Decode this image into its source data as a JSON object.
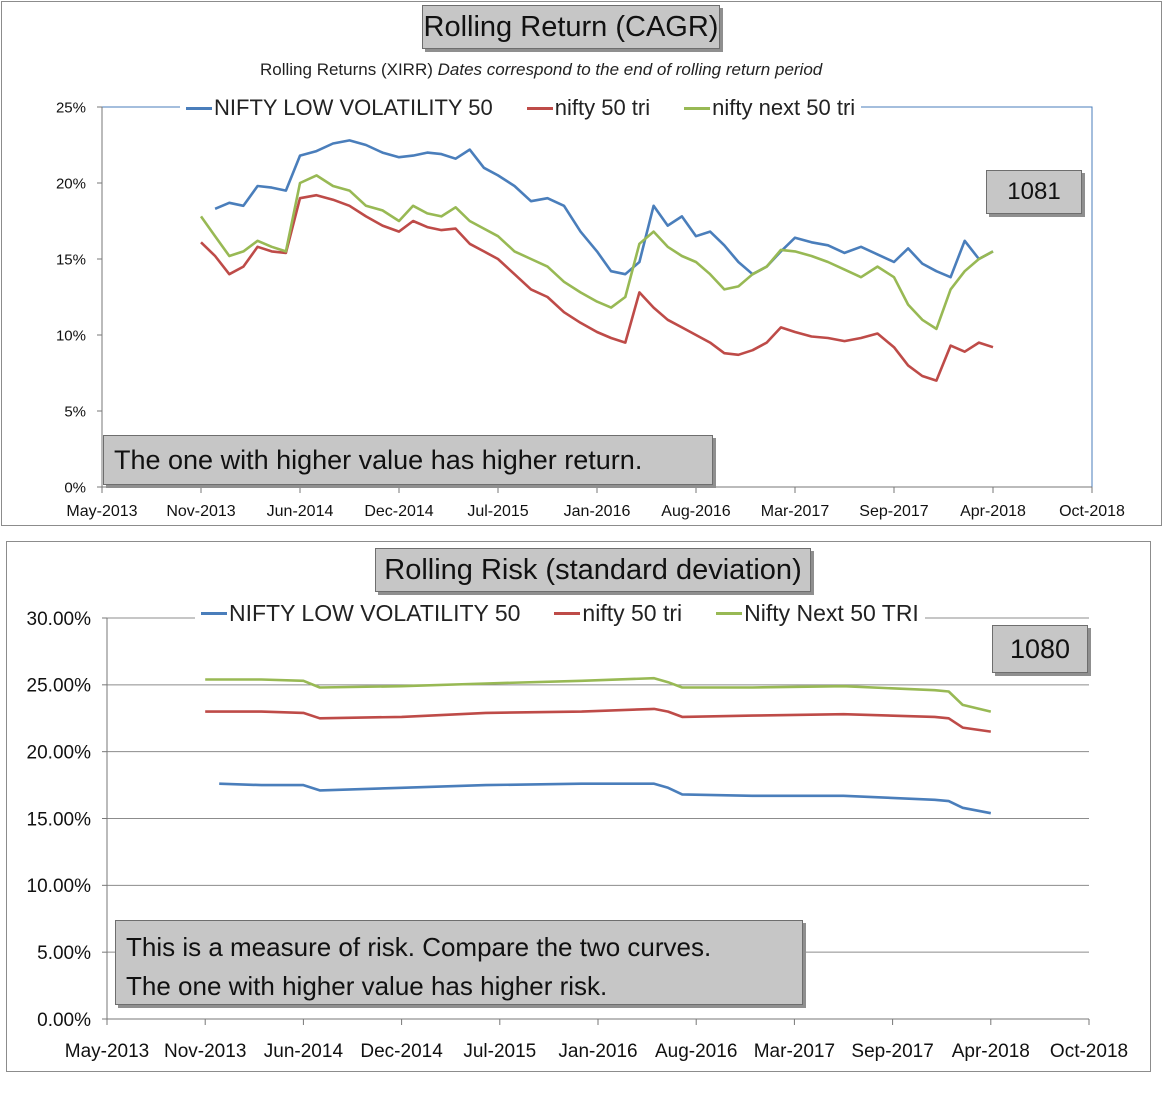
{
  "colors": {
    "low_vol": "#4a7ebb",
    "nifty50": "#be4b48",
    "next50": "#98b954"
  },
  "chart_data": [
    {
      "type": "line",
      "title": "Rolling Return (CAGR)",
      "subtitle_plain": "Rolling Returns (XIRR)",
      "subtitle_italic": "Dates correspond to the end of rolling return period",
      "badge": "1081",
      "annotation": [
        "The one with higher value has higher return."
      ],
      "x_ticks": [
        "May-2013",
        "Nov-2013",
        "Jun-2014",
        "Dec-2014",
        "Jul-2015",
        "Jan-2016",
        "Aug-2016",
        "Mar-2017",
        "Sep-2017",
        "Apr-2018",
        "Oct-2018"
      ],
      "y_ticks": [
        "0%",
        "5%",
        "10%",
        "15%",
        "20%",
        "25%"
      ],
      "ylim": [
        0,
        25
      ],
      "grid": false,
      "legend_position": "top",
      "series": [
        {
          "name": "NIFTY LOW VOLATILITY 50",
          "x": [
            "2013-12",
            "2014-01",
            "2014-02",
            "2014-03",
            "2014-04",
            "2014-05",
            "2014-06",
            "2014-07",
            "2014-08",
            "2014-09",
            "2014-10",
            "2014-11",
            "2014-12",
            "2015-01",
            "2015-02",
            "2015-03",
            "2015-04",
            "2015-05",
            "2015-06",
            "2015-07",
            "2015-08",
            "2015-09",
            "2015-10",
            "2015-11",
            "2015-12",
            "2016-01",
            "2016-02",
            "2016-03",
            "2016-04",
            "2016-05",
            "2016-06",
            "2016-07",
            "2016-08",
            "2016-09",
            "2016-10",
            "2016-11",
            "2016-12",
            "2017-01",
            "2017-02",
            "2017-03",
            "2017-04",
            "2017-05",
            "2017-06",
            "2017-07",
            "2017-08",
            "2017-09",
            "2017-10",
            "2017-11",
            "2017-12",
            "2018-01",
            "2018-02",
            "2018-03",
            "2018-04"
          ],
          "y": [
            18.3,
            18.7,
            18.5,
            19.8,
            19.7,
            19.5,
            21.8,
            22.1,
            22.6,
            22.8,
            22.5,
            22.0,
            21.7,
            21.8,
            22.0,
            21.9,
            21.6,
            22.2,
            21.0,
            20.5,
            19.8,
            18.8,
            19.0,
            18.5,
            16.8,
            15.5,
            14.2,
            14.0,
            14.8,
            18.5,
            17.2,
            17.8,
            16.5,
            16.8,
            15.9,
            14.8,
            14.0,
            14.5,
            15.5,
            16.4,
            16.1,
            15.9,
            15.4,
            15.8,
            15.3,
            14.8,
            15.7,
            14.7,
            14.2,
            13.8,
            16.2,
            15.0,
            15.5
          ]
        },
        {
          "name": "nifty 50 tri",
          "x": [
            "2013-11",
            "2013-12",
            "2014-01",
            "2014-02",
            "2014-03",
            "2014-04",
            "2014-05",
            "2014-06",
            "2014-07",
            "2014-08",
            "2014-09",
            "2014-10",
            "2014-11",
            "2014-12",
            "2015-01",
            "2015-02",
            "2015-03",
            "2015-04",
            "2015-05",
            "2015-06",
            "2015-07",
            "2015-08",
            "2015-09",
            "2015-10",
            "2015-11",
            "2015-12",
            "2016-01",
            "2016-02",
            "2016-03",
            "2016-04",
            "2016-05",
            "2016-06",
            "2016-07",
            "2016-08",
            "2016-09",
            "2016-10",
            "2016-11",
            "2016-12",
            "2017-01",
            "2017-02",
            "2017-03",
            "2017-04",
            "2017-05",
            "2017-06",
            "2017-07",
            "2017-08",
            "2017-09",
            "2017-10",
            "2017-11",
            "2017-12",
            "2018-01",
            "2018-02",
            "2018-03",
            "2018-04"
          ],
          "y": [
            16.1,
            15.2,
            14.0,
            14.5,
            15.8,
            15.5,
            15.4,
            19.0,
            19.2,
            18.9,
            18.5,
            17.8,
            17.2,
            16.8,
            17.5,
            17.1,
            16.9,
            17.0,
            16.0,
            15.5,
            15.0,
            14.0,
            13.0,
            12.5,
            11.5,
            10.8,
            10.2,
            9.8,
            9.5,
            12.8,
            11.8,
            11.0,
            10.5,
            10.0,
            9.5,
            8.8,
            8.7,
            9.0,
            9.5,
            10.5,
            10.2,
            9.9,
            9.8,
            9.6,
            9.8,
            10.1,
            9.2,
            8.0,
            7.3,
            7.0,
            9.3,
            8.9,
            9.5,
            9.2
          ]
        },
        {
          "name": "nifty next 50 tri",
          "x": [
            "2013-11",
            "2013-12",
            "2014-01",
            "2014-02",
            "2014-03",
            "2014-04",
            "2014-05",
            "2014-06",
            "2014-07",
            "2014-08",
            "2014-09",
            "2014-10",
            "2014-11",
            "2014-12",
            "2015-01",
            "2015-02",
            "2015-03",
            "2015-04",
            "2015-05",
            "2015-06",
            "2015-07",
            "2015-08",
            "2015-09",
            "2015-10",
            "2015-11",
            "2015-12",
            "2016-01",
            "2016-02",
            "2016-03",
            "2016-04",
            "2016-05",
            "2016-06",
            "2016-07",
            "2016-08",
            "2016-09",
            "2016-10",
            "2016-11",
            "2016-12",
            "2017-01",
            "2017-02",
            "2017-03",
            "2017-04",
            "2017-05",
            "2017-06",
            "2017-07",
            "2017-08",
            "2017-09",
            "2017-10",
            "2017-11",
            "2017-12",
            "2018-01",
            "2018-02",
            "2018-03",
            "2018-04"
          ],
          "y": [
            17.8,
            16.5,
            15.2,
            15.5,
            16.2,
            15.8,
            15.5,
            20.0,
            20.5,
            19.8,
            19.5,
            18.5,
            18.2,
            17.5,
            18.5,
            18.0,
            17.8,
            18.4,
            17.5,
            17.0,
            16.5,
            15.5,
            15.0,
            14.5,
            13.5,
            12.8,
            12.2,
            11.8,
            12.5,
            16.0,
            16.8,
            15.8,
            15.2,
            14.8,
            14.0,
            13.0,
            13.2,
            14.0,
            14.5,
            15.6,
            15.5,
            15.2,
            14.8,
            14.3,
            13.8,
            14.5,
            13.8,
            12.0,
            11.0,
            10.4,
            13.0,
            14.2,
            15.0,
            15.5
          ]
        }
      ]
    },
    {
      "type": "line",
      "title": "Rolling Risk (standard deviation)",
      "badge": "1080",
      "annotation": [
        "This is a measure of risk.  Compare the two curves.",
        "The one with higher value has higher risk."
      ],
      "x_ticks": [
        "May-2013",
        "Nov-2013",
        "Jun-2014",
        "Dec-2014",
        "Jul-2015",
        "Jan-2016",
        "Aug-2016",
        "Mar-2017",
        "Sep-2017",
        "Apr-2018",
        "Oct-2018"
      ],
      "y_ticks": [
        "0.00%",
        "5.00%",
        "10.00%",
        "15.00%",
        "20.00%",
        "25.00%",
        "30.00%"
      ],
      "ylim": [
        0,
        30
      ],
      "grid": true,
      "legend_position": "top",
      "series": [
        {
          "name": "NIFTY LOW VOLATILITY 50",
          "x": [
            "2013-12",
            "2014-03",
            "2014-06",
            "2014-07",
            "2014-12",
            "2015-06",
            "2015-12",
            "2016-05",
            "2016-06",
            "2016-07",
            "2016-12",
            "2017-06",
            "2017-12",
            "2018-01",
            "2018-02",
            "2018-04"
          ],
          "y": [
            17.6,
            17.5,
            17.5,
            17.1,
            17.3,
            17.5,
            17.6,
            17.6,
            17.3,
            16.8,
            16.7,
            16.7,
            16.4,
            16.3,
            15.8,
            15.4
          ]
        },
        {
          "name": "nifty 50 tri",
          "x": [
            "2013-11",
            "2014-03",
            "2014-06",
            "2014-07",
            "2014-12",
            "2015-06",
            "2015-12",
            "2016-05",
            "2016-06",
            "2016-07",
            "2016-12",
            "2017-06",
            "2017-12",
            "2018-01",
            "2018-02",
            "2018-04"
          ],
          "y": [
            23.0,
            23.0,
            22.9,
            22.5,
            22.6,
            22.9,
            23.0,
            23.2,
            23.0,
            22.6,
            22.7,
            22.8,
            22.6,
            22.5,
            21.8,
            21.5
          ]
        },
        {
          "name": "Nifty Next 50 TRI",
          "x": [
            "2013-11",
            "2014-03",
            "2014-06",
            "2014-07",
            "2014-12",
            "2015-06",
            "2015-12",
            "2016-05",
            "2016-06",
            "2016-07",
            "2016-12",
            "2017-06",
            "2017-12",
            "2018-01",
            "2018-02",
            "2018-04"
          ],
          "y": [
            25.4,
            25.4,
            25.3,
            24.8,
            24.9,
            25.1,
            25.3,
            25.5,
            25.2,
            24.8,
            24.8,
            24.9,
            24.6,
            24.5,
            23.5,
            23.0
          ]
        }
      ]
    }
  ]
}
